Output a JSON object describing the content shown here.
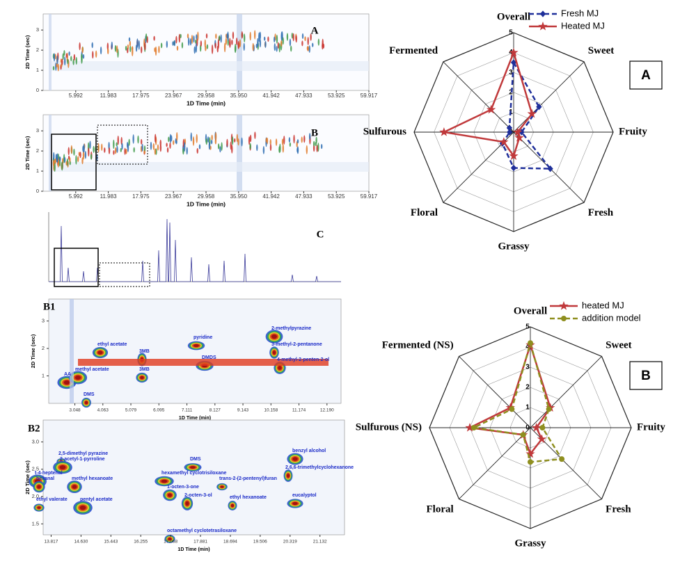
{
  "chart_data": [
    {
      "type": "gcxgc",
      "label": "A",
      "xlabel": "1D Time (min)",
      "ylabel": "2D Time (sec)",
      "xlim": [
        0,
        59.917
      ],
      "ylim": [
        0,
        3.8
      ],
      "xticks": [
        5.992,
        11.983,
        17.975,
        23.967,
        29.958,
        {
          "value": 35.95,
          "label": "35.950"
        },
        41.942,
        47.933,
        53.925,
        59.917
      ],
      "yticks": [
        0,
        1,
        2,
        3
      ]
    },
    {
      "type": "gcxgc",
      "label": "B",
      "xlabel": "1D Time (min)",
      "ylabel": "2D Time (sec)",
      "xlim": [
        0,
        59.917
      ],
      "ylim": [
        0,
        3.8
      ],
      "xticks": [
        5.992,
        11.983,
        17.975,
        23.967,
        29.958,
        {
          "value": 35.95,
          "label": "35.950"
        },
        41.942,
        47.933,
        53.925,
        59.917
      ],
      "yticks": [
        0,
        1,
        2,
        3
      ]
    },
    {
      "type": "chromatogram",
      "label": "C"
    },
    {
      "type": "gcxgc-zoom",
      "label": "B1",
      "xlabel": "1D Time (min)",
      "ylabel": "2D Time (sec)",
      "xlim": [
        2.1,
        12.7
      ],
      "ylim": [
        0,
        3.8
      ],
      "xticks": [
        3.048,
        4.063,
        5.079,
        6.095,
        7.111,
        8.127,
        9.143,
        10.158,
        11.174,
        {
          "value": 12.19,
          "label": "12.190"
        }
      ],
      "yticks": [
        1,
        2,
        3
      ],
      "annotations": [
        "ethyl acetate",
        "3MB",
        "pyridine",
        "2-methylpyrazine",
        "3-methyl-2-pentanone",
        "DMDS",
        "4-methyl-2-penten-2-ol",
        "AA",
        "methyl acetate",
        "3MB",
        "DMS"
      ]
    },
    {
      "type": "gcxgc-zoom",
      "label": "B2",
      "xlabel": "1D Time (min)",
      "ylabel": "2D Time (sec)",
      "xlim": [
        13.6,
        21.8
      ],
      "ylim": [
        1.3,
        3.4
      ],
      "xticks": [
        13.817,
        {
          "value": 14.63,
          "label": "14.630"
        },
        15.443,
        16.255,
        17.068,
        17.881,
        18.694,
        19.506,
        20.319,
        21.132
      ],
      "yticks": [
        {
          "value": 1.5,
          "label": "1.5"
        },
        {
          "value": 2,
          "label": "2.0"
        },
        {
          "value": 2.5,
          "label": "2.5"
        },
        {
          "value": 3,
          "label": "3.0"
        }
      ],
      "annotations": [
        "2,5-dimethyl pyrazine",
        "2-acetyl-1-pyrroline",
        "t-4-heptenal",
        "hexanal",
        "methyl hexanoate",
        "ethyl valerate",
        "pentyl acetate",
        "DMS",
        "hexamethyl cyclotrisiloxane",
        "1-octen-3-one",
        "2-octen-3-ol",
        "trans-2-(2-pentenyl)furan",
        "ethyl hexanoate",
        "eucalyptol",
        "benzyl alcohol",
        "2,6,6-trimethylcyclohexanone",
        "octamethyl cyclotetrasiloxane"
      ]
    },
    {
      "type": "radar",
      "label": "A",
      "categories": [
        "Overall",
        "Sweet",
        "Fruity",
        "Fresh",
        "Grassy",
        "Floral",
        "Sulfurous",
        "Fermented"
      ],
      "rlim": [
        0,
        5
      ],
      "rticks": [
        0,
        1,
        2,
        3,
        4,
        5
      ],
      "series": [
        {
          "name": "Fresh MJ",
          "color": "#1f2f9a",
          "marker": "diamond",
          "dashed": true,
          "values": [
            3.5,
            1.8,
            0.4,
            2.6,
            1.8,
            0.8,
            0.2,
            0.3
          ]
        },
        {
          "name": "Heated MJ",
          "color": "#c0393b",
          "marker": "star",
          "dashed": false,
          "values": [
            4.0,
            1.3,
            0.2,
            0.4,
            1.2,
            0.7,
            3.5,
            1.6
          ]
        }
      ]
    },
    {
      "type": "radar",
      "label": "B",
      "categories": [
        "Overall",
        "Sweet",
        "Fruity",
        "Fresh",
        "Grassy",
        "Floral",
        "Sulfurous (NS)",
        "Fermented (NS)"
      ],
      "rlim": [
        0,
        5
      ],
      "rticks": [
        0,
        1,
        2,
        3,
        4,
        5
      ],
      "series": [
        {
          "name": "heated MJ",
          "color": "#c0393b",
          "marker": "star",
          "dashed": false,
          "values": [
            4.1,
            1.4,
            0.3,
            0.8,
            1.3,
            0.5,
            3.0,
            1.4
          ]
        },
        {
          "name": "addition model",
          "color": "#8f8f1f",
          "marker": "circle",
          "dashed": true,
          "values": [
            4.2,
            1.3,
            0.6,
            2.2,
            1.7,
            0.5,
            2.8,
            1.3
          ]
        }
      ]
    }
  ]
}
